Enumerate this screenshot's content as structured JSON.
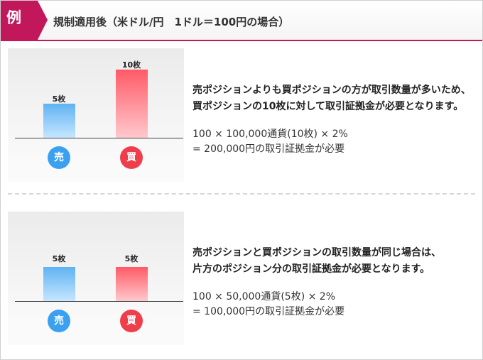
{
  "header": {
    "badge": "例",
    "title": "規制適用後（米ドル/円　1ドル＝100円の場合）",
    "accent_color": "#c2185b"
  },
  "examples": [
    {
      "chart_data": {
        "type": "bar",
        "categories": [
          "売",
          "買"
        ],
        "values": [
          5,
          10
        ],
        "value_labels": [
          "5枚",
          "10枚"
        ],
        "colors": [
          "#5fb3f2",
          "#ff5a66"
        ]
      },
      "explanation_line1": "売ポジションよりも買ポジションの方が取引数量が多いため、",
      "explanation_line2": "買ポジションの10枚に対して取引証拠金が必要となります。",
      "formula_line1": "100 × 100,000通貨(10枚) × 2%",
      "formula_line2_value": "= 200,000円",
      "formula_line2_suffix": "の取引証拠金が必要"
    },
    {
      "chart_data": {
        "type": "bar",
        "categories": [
          "売",
          "買"
        ],
        "values": [
          5,
          5
        ],
        "value_labels": [
          "5枚",
          "5枚"
        ],
        "colors": [
          "#5fb3f2",
          "#ff5a66"
        ]
      },
      "explanation_line1": "売ポジションと買ポジションの取引数量が同じ場合は、",
      "explanation_line2": "片方のポジション分の取引証拠金が必要となります。",
      "formula_line1": "100 × 50,000通貨(5枚) × 2%",
      "formula_line2_value": "= 100,000円",
      "formula_line2_suffix": "の取引証拠金が必要"
    }
  ]
}
